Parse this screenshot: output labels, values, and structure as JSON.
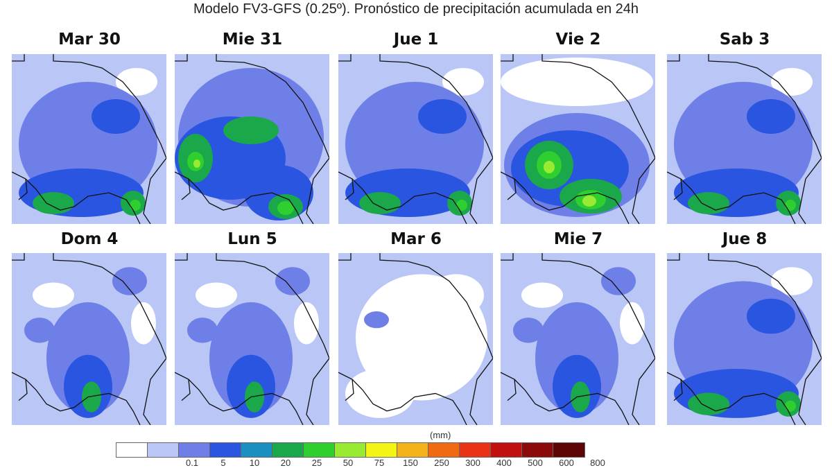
{
  "title": "Modelo FV3-GFS (0.25º). Pronóstico de precipitación acumulada en 24h",
  "panels": [
    {
      "day": "Mar 30",
      "level": "moderate"
    },
    {
      "day": "Mie 31",
      "level": "moderate-high"
    },
    {
      "day": "Jue 1",
      "level": "moderate"
    },
    {
      "day": "Vie 2",
      "level": "high"
    },
    {
      "day": "Sab 3",
      "level": "moderate"
    },
    {
      "day": "Dom 4",
      "level": "low-moderate"
    },
    {
      "day": "Lun 5",
      "level": "low-moderate"
    },
    {
      "day": "Mar 6",
      "level": "low"
    },
    {
      "day": "Mie 7",
      "level": "low-moderate"
    },
    {
      "day": "Jue 8",
      "level": "moderate"
    }
  ],
  "legend": {
    "unit": "(mm)",
    "ticks": [
      "0.1",
      "5",
      "10",
      "20",
      "25",
      "50",
      "75",
      "150",
      "250",
      "300",
      "400",
      "500",
      "600",
      "800"
    ],
    "colors": [
      "#ffffff",
      "#b9c6f6",
      "#6f7fe8",
      "#2a55e0",
      "#1a8fc0",
      "#1aa84a",
      "#2ecf2e",
      "#99ea33",
      "#f5f515",
      "#f5b21a",
      "#f06a14",
      "#e83314",
      "#c01010",
      "#8c0a0a",
      "#5e0606"
    ]
  }
}
